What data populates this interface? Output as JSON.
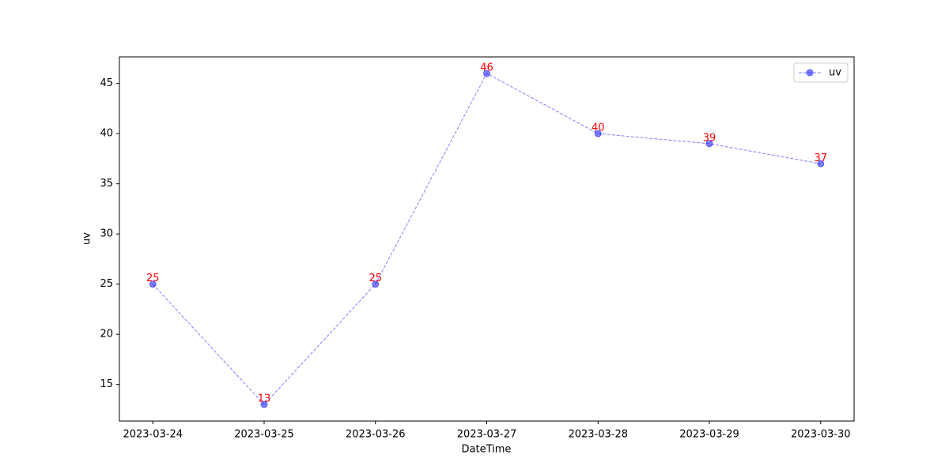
{
  "chart_data": {
    "type": "line",
    "categories": [
      "2023-03-24",
      "2023-03-25",
      "2023-03-26",
      "2023-03-27",
      "2023-03-28",
      "2023-03-29",
      "2023-03-30"
    ],
    "series": [
      {
        "name": "uv",
        "color": "#0000ff",
        "values": [
          25,
          13,
          25,
          46,
          40,
          39,
          37
        ]
      }
    ],
    "label_color": "#ff0000",
    "x_label": "DateTime",
    "y_label": "uv",
    "ylim": [
      11.35,
      47.65
    ],
    "yticks": [
      15,
      20,
      25,
      30,
      35,
      40,
      45
    ],
    "legend": "upper right",
    "grid": false
  }
}
